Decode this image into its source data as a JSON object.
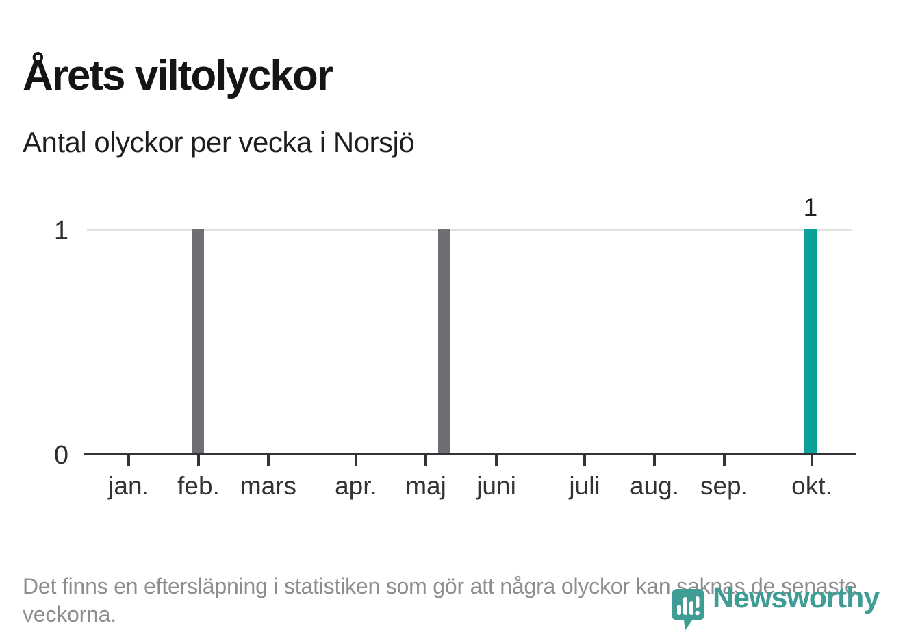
{
  "header": {
    "title": "Årets viltolyckor",
    "subtitle": "Antal olyckor per vecka i Norsjö"
  },
  "colors": {
    "bar_gray": "#6e6e73",
    "bar_teal": "#0aa296",
    "gridline": "#e1e1e1",
    "axis": "#323437",
    "text_dark": "#1e1e1e",
    "text_axis": "#333333",
    "text_muted": "#8d8d8d",
    "logo_teal": "#3f9d95"
  },
  "chart_data": {
    "type": "bar",
    "title": "Årets viltolyckor",
    "subtitle": "Antal olyckor per vecka i Norsjö",
    "xlabel": "",
    "ylabel": "",
    "x_unit": "vecka (weekly bars, januari till oktober, year to date)",
    "ylim": [
      0,
      1
    ],
    "grid": "horizontal, only at y=1",
    "legend_position": "none",
    "yticks": [
      {
        "value": 1,
        "label": "1",
        "pos": 1
      },
      {
        "value": 0,
        "label": "0",
        "pos": 0
      }
    ],
    "month_ticks": [
      {
        "label": "jan.",
        "pos": 0.0546
      },
      {
        "label": "feb.",
        "pos": 0.1458
      },
      {
        "label": "mars",
        "pos": 0.237
      },
      {
        "label": "apr.",
        "pos": 0.3515
      },
      {
        "label": "maj",
        "pos": 0.4428
      },
      {
        "label": "juni",
        "pos": 0.5349
      },
      {
        "label": "juli",
        "pos": 0.6503
      },
      {
        "label": "aug.",
        "pos": 0.7415
      },
      {
        "label": "sep.",
        "pos": 0.8327
      },
      {
        "label": "okt.",
        "pos": 0.9472
      }
    ],
    "bars": [
      {
        "week": "vecka 7 (feb.)",
        "pos": 0.1449,
        "value": 1,
        "color_key": "bar_gray",
        "value_label": ""
      },
      {
        "week": "vecka 21 (maj)",
        "pos": 0.4669,
        "value": 1,
        "color_key": "bar_gray",
        "value_label": ""
      },
      {
        "week": "vecka 42 (okt.)",
        "pos": 0.9454,
        "value": 1,
        "color_key": "bar_teal",
        "value_label": "1"
      }
    ],
    "all_other_weeks_value": 0
  },
  "footer": {
    "note": "Det finns en eftersläpning i statistiken som gör att några olyckor kan saknas de senaste veckorna."
  },
  "logo": {
    "wordmark": "Newsworthy"
  }
}
